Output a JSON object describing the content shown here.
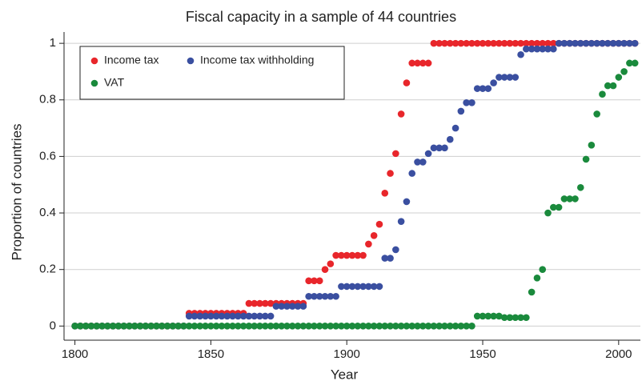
{
  "chart_data": {
    "type": "scatter",
    "title": "Fiscal capacity in a sample of 44 countries",
    "x_label": "Year",
    "y_label": "Proportion of countries",
    "xlim": [
      1796,
      2008
    ],
    "ylim": [
      -0.05,
      1.04
    ],
    "xticks": [
      1800,
      1850,
      1900,
      1950,
      2000
    ],
    "yticks": [
      0,
      0.2,
      0.4,
      0.6,
      0.8,
      1
    ],
    "grid": true,
    "legend": "top-left",
    "x": [
      1800,
      1802,
      1804,
      1806,
      1808,
      1810,
      1812,
      1814,
      1816,
      1818,
      1820,
      1822,
      1824,
      1826,
      1828,
      1830,
      1832,
      1834,
      1836,
      1838,
      1840,
      1842,
      1844,
      1846,
      1848,
      1850,
      1852,
      1854,
      1856,
      1858,
      1860,
      1862,
      1864,
      1866,
      1868,
      1870,
      1872,
      1874,
      1876,
      1878,
      1880,
      1882,
      1884,
      1886,
      1888,
      1890,
      1892,
      1894,
      1896,
      1898,
      1900,
      1902,
      1904,
      1906,
      1908,
      1910,
      1912,
      1914,
      1916,
      1918,
      1920,
      1922,
      1924,
      1926,
      1928,
      1930,
      1932,
      1934,
      1936,
      1938,
      1940,
      1942,
      1944,
      1946,
      1948,
      1950,
      1952,
      1954,
      1956,
      1958,
      1960,
      1962,
      1964,
      1966,
      1968,
      1970,
      1972,
      1974,
      1976,
      1978,
      1980,
      1982,
      1984,
      1986,
      1988,
      1990,
      1992,
      1994,
      1996,
      1998,
      2000,
      2002,
      2004,
      2006
    ],
    "series": [
      {
        "name": "Income tax",
        "color": "#e8262b",
        "values": [
          0,
          0,
          0,
          0,
          0,
          0,
          0,
          0,
          0,
          0,
          0,
          0,
          0,
          0,
          0,
          0,
          0,
          0,
          0,
          0,
          0,
          0.045,
          0.045,
          0.045,
          0.045,
          0.045,
          0.045,
          0.045,
          0.045,
          0.045,
          0.045,
          0.045,
          0.08,
          0.08,
          0.08,
          0.08,
          0.08,
          0.08,
          0.08,
          0.08,
          0.08,
          0.08,
          0.08,
          0.16,
          0.16,
          0.16,
          0.2,
          0.22,
          0.25,
          0.25,
          0.25,
          0.25,
          0.25,
          0.25,
          0.29,
          0.32,
          0.36,
          0.47,
          0.54,
          0.61,
          0.75,
          0.86,
          0.93,
          0.93,
          0.93,
          0.93,
          1,
          1,
          1,
          1,
          1,
          1,
          1,
          1,
          1,
          1,
          1,
          1,
          1,
          1,
          1,
          1,
          1,
          1,
          1,
          1,
          1,
          1,
          1,
          1,
          1,
          1,
          1,
          1,
          1,
          1,
          1,
          1,
          1,
          1,
          1,
          1,
          1,
          1
        ]
      },
      {
        "name": "Income tax withholding",
        "color": "#3a4fa0",
        "values": [
          0,
          0,
          0,
          0,
          0,
          0,
          0,
          0,
          0,
          0,
          0,
          0,
          0,
          0,
          0,
          0,
          0,
          0,
          0,
          0,
          0,
          0.035,
          0.035,
          0.035,
          0.035,
          0.035,
          0.035,
          0.035,
          0.035,
          0.035,
          0.035,
          0.035,
          0.035,
          0.035,
          0.035,
          0.035,
          0.035,
          0.07,
          0.07,
          0.07,
          0.07,
          0.07,
          0.07,
          0.105,
          0.105,
          0.105,
          0.105,
          0.105,
          0.105,
          0.14,
          0.14,
          0.14,
          0.14,
          0.14,
          0.14,
          0.14,
          0.14,
          0.24,
          0.24,
          0.27,
          0.37,
          0.44,
          0.54,
          0.58,
          0.58,
          0.61,
          0.63,
          0.63,
          0.63,
          0.66,
          0.7,
          0.76,
          0.79,
          0.79,
          0.84,
          0.84,
          0.84,
          0.86,
          0.88,
          0.88,
          0.88,
          0.88,
          0.96,
          0.98,
          0.98,
          0.98,
          0.98,
          0.98,
          0.98,
          1,
          1,
          1,
          1,
          1,
          1,
          1,
          1,
          1,
          1,
          1,
          1,
          1,
          1,
          1
        ]
      },
      {
        "name": "VAT",
        "color": "#1a8a3c",
        "values": [
          0,
          0,
          0,
          0,
          0,
          0,
          0,
          0,
          0,
          0,
          0,
          0,
          0,
          0,
          0,
          0,
          0,
          0,
          0,
          0,
          0,
          0,
          0,
          0,
          0,
          0,
          0,
          0,
          0,
          0,
          0,
          0,
          0,
          0,
          0,
          0,
          0,
          0,
          0,
          0,
          0,
          0,
          0,
          0,
          0,
          0,
          0,
          0,
          0,
          0,
          0,
          0,
          0,
          0,
          0,
          0,
          0,
          0,
          0,
          0,
          0,
          0,
          0,
          0,
          0,
          0,
          0,
          0,
          0,
          0,
          0,
          0,
          0,
          0,
          0.035,
          0.035,
          0.035,
          0.035,
          0.035,
          0.03,
          0.03,
          0.03,
          0.03,
          0.03,
          0.12,
          0.17,
          0.2,
          0.4,
          0.42,
          0.42,
          0.45,
          0.45,
          0.45,
          0.49,
          0.59,
          0.64,
          0.75,
          0.82,
          0.85,
          0.85,
          0.88,
          0.9,
          0.93,
          0.93
        ]
      }
    ]
  }
}
